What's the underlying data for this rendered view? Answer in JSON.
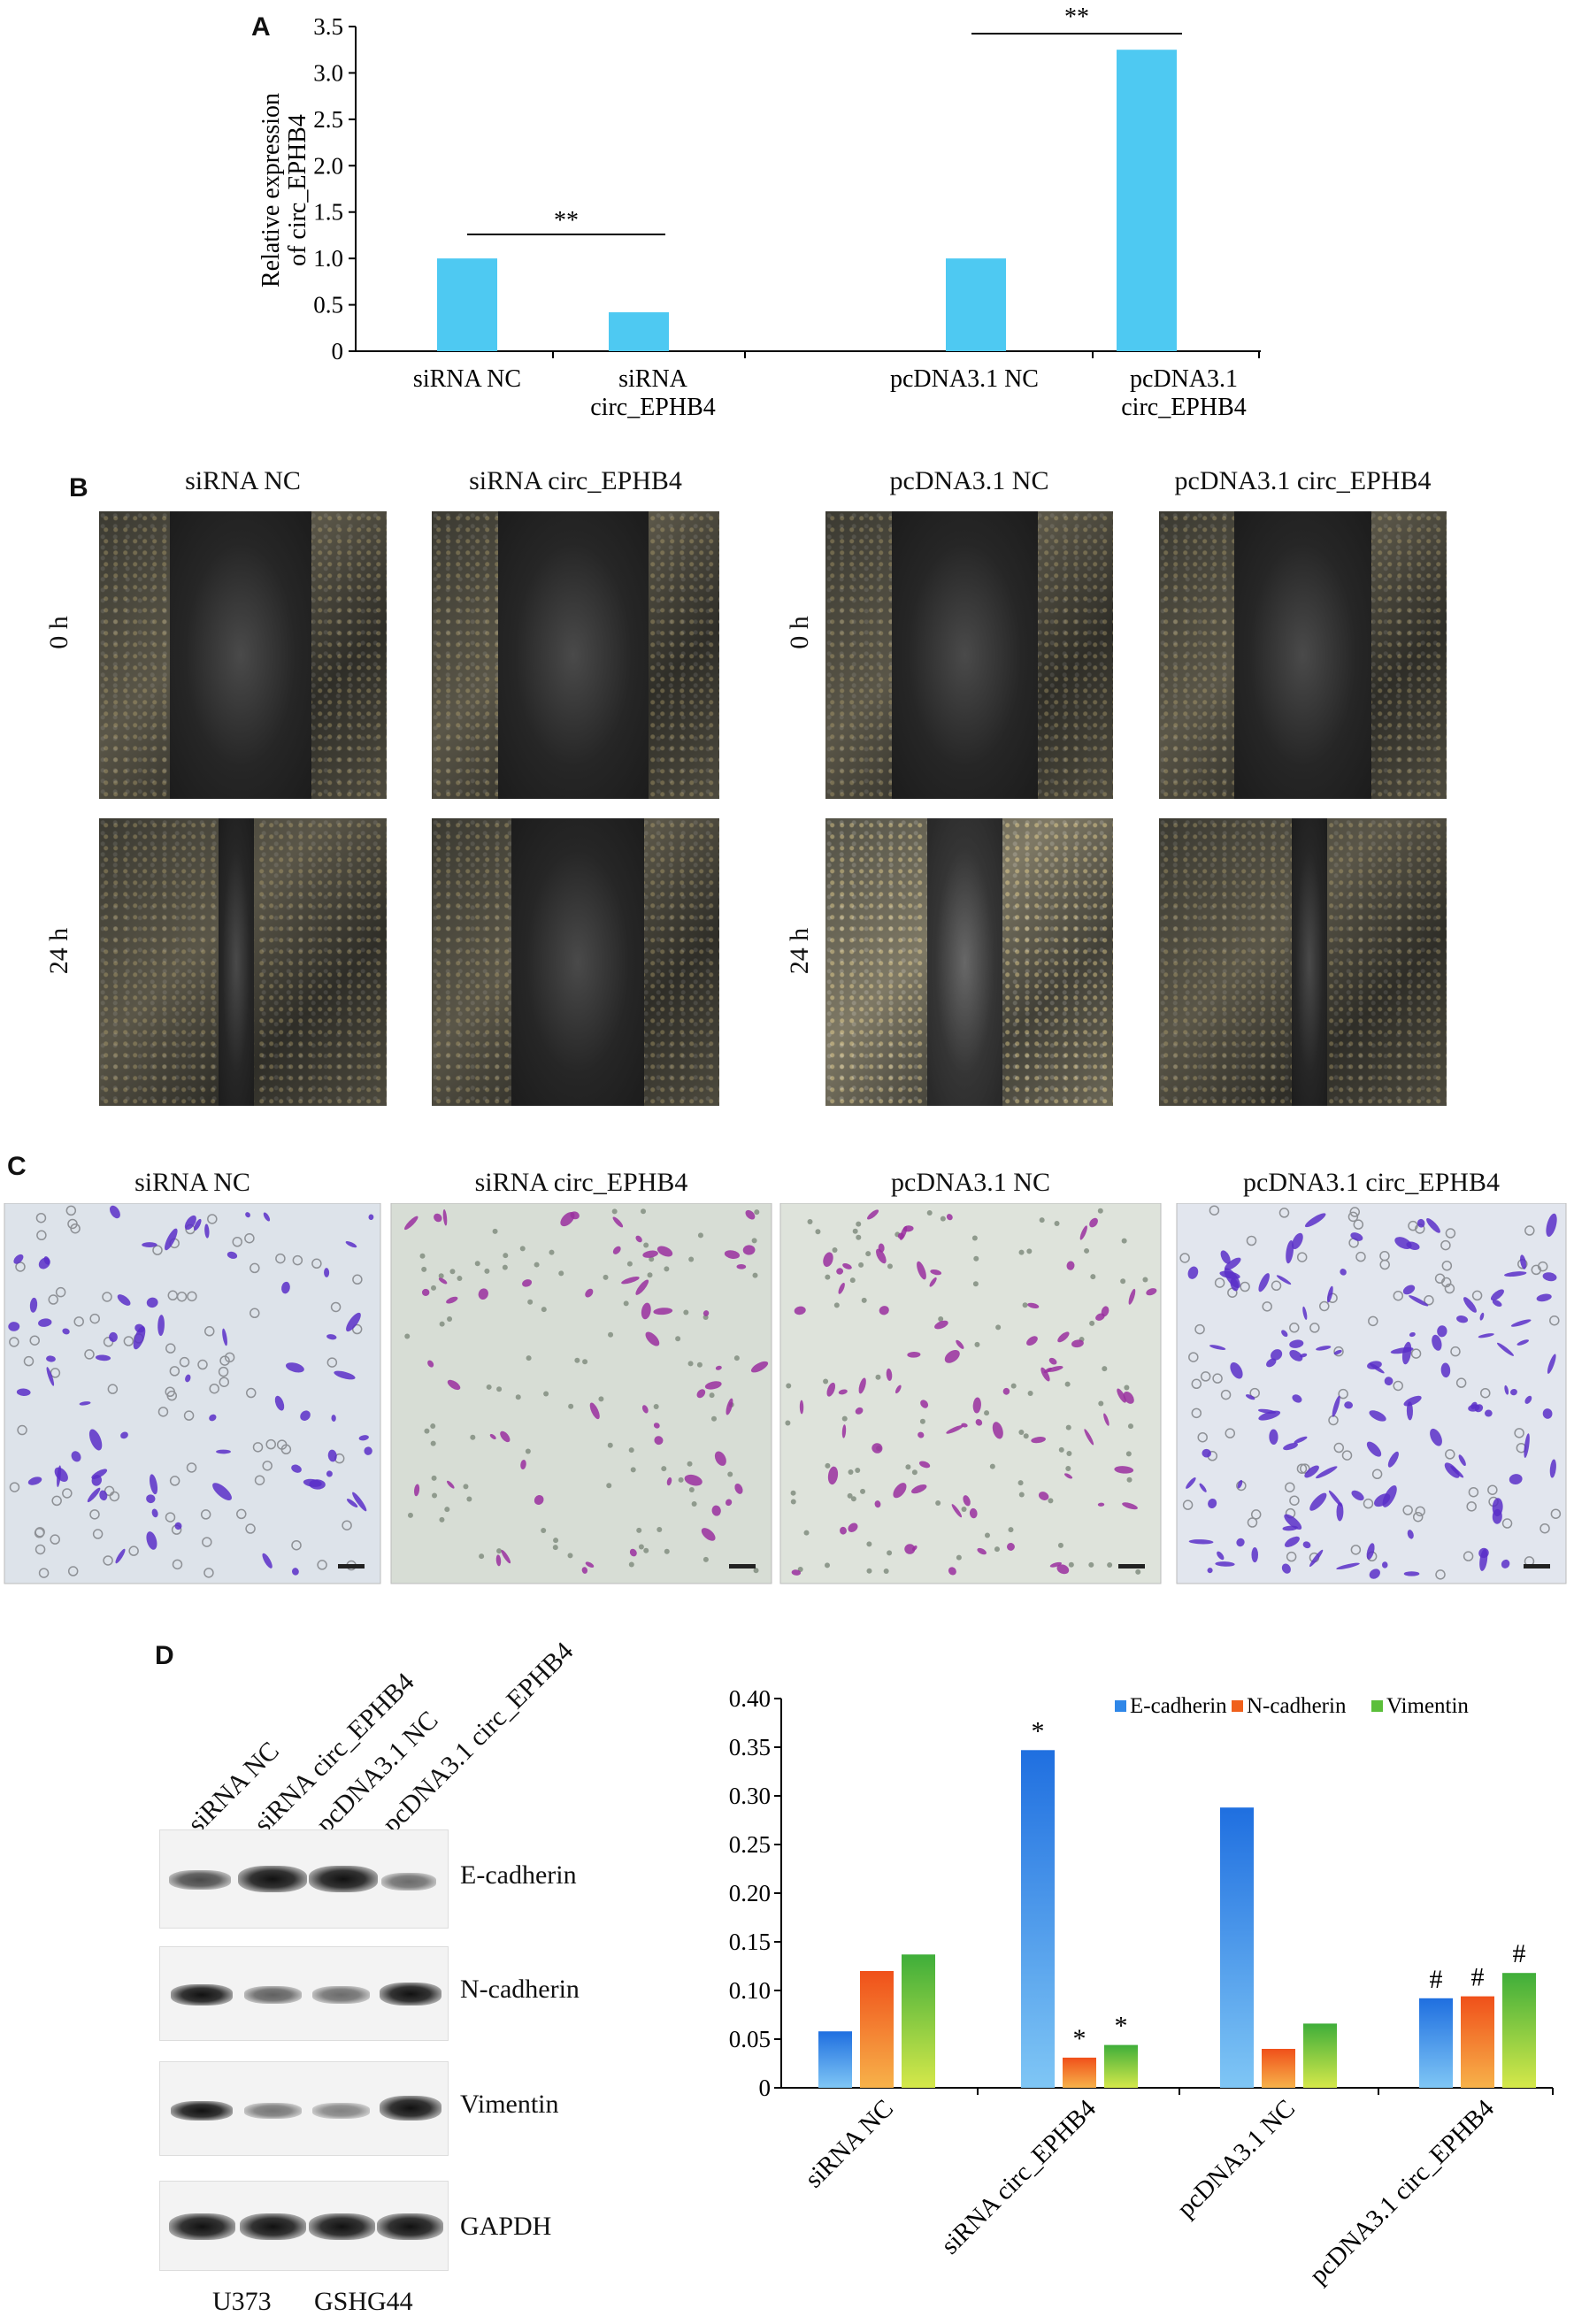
{
  "panel_labels": {
    "a": "A",
    "b": "B",
    "c": "C",
    "d": "D"
  },
  "colors": {
    "bar_a": "#4ec9f2",
    "e_cadherin": "#2f87e8",
    "n_cadherin": "#f0601c",
    "vimentin": "#5bbf3a",
    "stain": "#6a2bbf"
  },
  "panel_b": {
    "groups": [
      "siRNA NC",
      "siRNA circ_EPHB4",
      "pcDNA3.1 NC",
      "pcDNA3.1 circ_EPHB4"
    ],
    "rows": [
      "0 h",
      "24 h"
    ]
  },
  "panel_c": {
    "groups": [
      "siRNA NC",
      "siRNA circ_EPHB4",
      "pcDNA3.1 NC",
      "pcDNA3.1 circ_EPHB4"
    ]
  },
  "panel_d_blot": {
    "lanes": [
      "siRNA NC",
      "siRNA circ_EPHB4",
      "pcDNA3.1 NC",
      "pcDNA3.1 circ_EPHB4"
    ],
    "proteins": [
      "E-cadherin",
      "N-cadherin",
      "Vimentin",
      "GAPDH"
    ],
    "cell_lines": [
      "U373",
      "GSHG44"
    ]
  },
  "chart_data": [
    {
      "type": "bar",
      "ylabel": "Relative expression of circ_EPHB4",
      "categories": [
        "siRNA NC",
        "siRNA circ_EPHB4",
        "pcDNA3.1 NC",
        "pcDNA3.1 circ_EPHB4"
      ],
      "values": [
        1.0,
        0.42,
        1.0,
        3.25
      ],
      "ylim": [
        0,
        3.5
      ],
      "yticks": [
        "0",
        "0.5",
        "1.0",
        "1.5",
        "2.0",
        "2.5",
        "3.0",
        "3.5"
      ],
      "significance": [
        {
          "between": [
            "siRNA NC",
            "siRNA circ_EPHB4"
          ],
          "label": "**"
        },
        {
          "between": [
            "pcDNA3.1 NC",
            "pcDNA3.1 circ_EPHB4"
          ],
          "label": "**"
        }
      ]
    },
    {
      "type": "bar",
      "categories": [
        "siRNA NC",
        "siRNA circ_EPHB4",
        "pcDNA3.1 NC",
        "pcDNA3.1 circ_EPHB4"
      ],
      "series": [
        {
          "name": "E-cadherin",
          "values": [
            0.058,
            0.347,
            0.288,
            0.092
          ],
          "marks": [
            "",
            "*",
            "",
            "#"
          ]
        },
        {
          "name": "N-cadherin",
          "values": [
            0.12,
            0.031,
            0.04,
            0.094
          ],
          "marks": [
            "",
            "*",
            "",
            "#"
          ]
        },
        {
          "name": "Vimentin",
          "values": [
            0.137,
            0.044,
            0.066,
            0.118
          ],
          "marks": [
            "",
            "*",
            "",
            "#"
          ]
        }
      ],
      "ylim": [
        0,
        0.4
      ],
      "yticks": [
        "0",
        "0.05",
        "0.10",
        "0.15",
        "0.20",
        "0.25",
        "0.30",
        "0.35",
        "0.40"
      ],
      "legend": "top-right"
    }
  ]
}
